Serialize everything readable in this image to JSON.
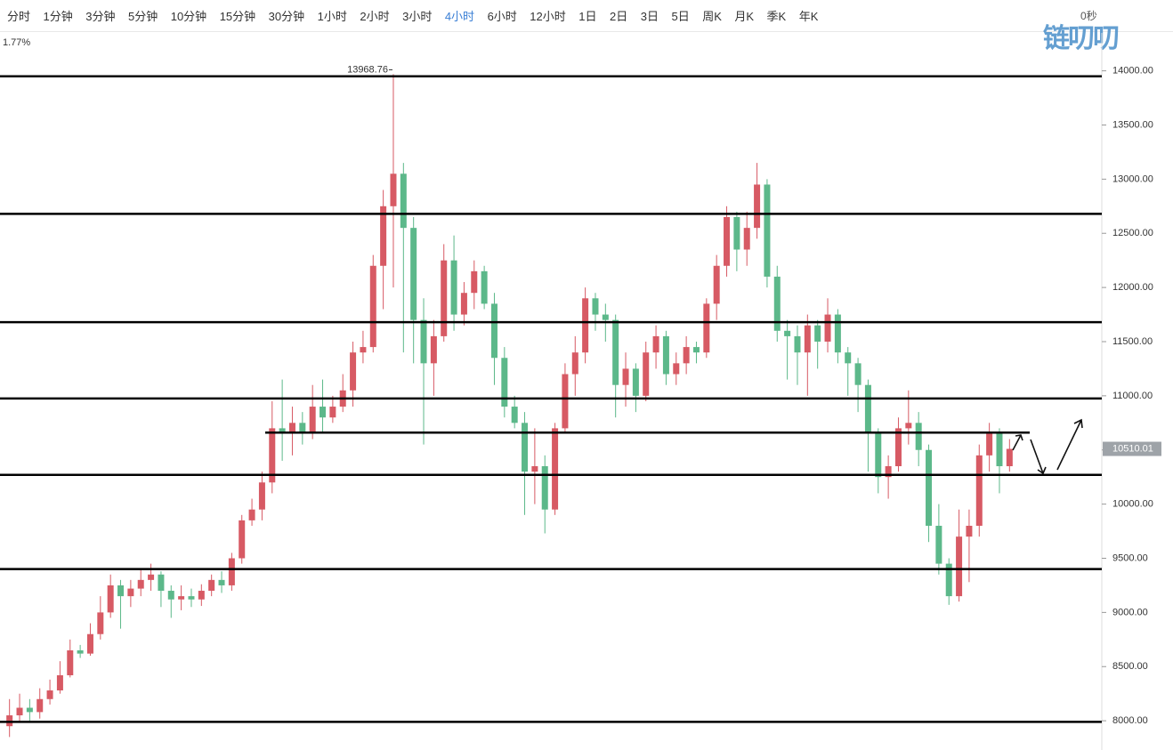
{
  "toolbar": {
    "items": [
      "分时",
      "1分钟",
      "3分钟",
      "5分钟",
      "10分钟",
      "15分钟",
      "30分钟",
      "1小时",
      "2小时",
      "3小时",
      "4小时",
      "6小时",
      "12小时",
      "1日",
      "2日",
      "3日",
      "5日",
      "周K",
      "月K",
      "季K",
      "年K"
    ],
    "selected_index": 10,
    "timer": "0秒"
  },
  "logo": "链叨叨",
  "chart_data": {
    "type": "candlestick",
    "change_label": "1.77%",
    "up_color": "#d75a64",
    "down_color": "#5cb88a",
    "ylim": [
      7730,
      14350
    ],
    "yticks": [
      {
        "value": 8000,
        "label": "8000.00"
      },
      {
        "value": 8500,
        "label": "8500.00"
      },
      {
        "value": 9000,
        "label": "9000.00"
      },
      {
        "value": 9500,
        "label": "9500.00"
      },
      {
        "value": 10000,
        "label": "10000.00"
      },
      {
        "value": 10500,
        "label": "10500.00"
      },
      {
        "value": 11000,
        "label": "11000.00"
      },
      {
        "value": 11500,
        "label": "11500.00"
      },
      {
        "value": 12000,
        "label": "12000.00"
      },
      {
        "value": 12500,
        "label": "12500.00"
      },
      {
        "value": 13000,
        "label": "13000.00"
      },
      {
        "value": 13500,
        "label": "13500.00"
      },
      {
        "value": 14000,
        "label": "14000.00"
      }
    ],
    "levels": [
      13950,
      12680,
      11680,
      10975,
      10660,
      10270,
      9400,
      7990
    ],
    "open": [
      7950,
      8050,
      8120,
      8080,
      8200,
      8280,
      8420,
      8650,
      8620,
      8800,
      9000,
      9250,
      9150,
      9220,
      9300,
      9350,
      9200,
      9120,
      9150,
      9120,
      9200,
      9300,
      9250,
      9500,
      9850,
      9950,
      10200,
      10700,
      10650,
      10750,
      10650,
      10900,
      10800,
      10900,
      11050,
      11400,
      11450,
      12200,
      12750,
      13050,
      12550,
      11700,
      11300,
      11550,
      12250,
      11750,
      11950,
      12150,
      11850,
      11350,
      10900,
      10750,
      10300,
      10350,
      9950,
      10700,
      11200,
      11400,
      11900,
      11750,
      11700,
      11100,
      11250,
      11000,
      11400,
      11550,
      11200,
      11300,
      11450,
      11400,
      11850,
      12200,
      12650,
      12350,
      12550,
      12950,
      12100,
      11600,
      11550,
      11400,
      11650,
      11500,
      11750,
      11400,
      11300,
      11100,
      10650,
      10250,
      10350,
      10700,
      10750,
      10500,
      9800,
      9450,
      9150,
      9700,
      9800,
      10450,
      10650,
      10350
    ],
    "high": [
      8200,
      8250,
      8200,
      8300,
      8380,
      8550,
      8750,
      8700,
      8900,
      9150,
      9350,
      9300,
      9300,
      9400,
      9450,
      9380,
      9250,
      9250,
      9220,
      9260,
      9350,
      9380,
      9550,
      9900,
      10050,
      10300,
      10950,
      11150,
      10900,
      10850,
      11100,
      11150,
      11000,
      11200,
      11500,
      11600,
      12300,
      12900,
      13968.76,
      13150,
      12650,
      11900,
      11700,
      12400,
      12480,
      12050,
      12250,
      12200,
      11950,
      11450,
      11000,
      10850,
      10700,
      10450,
      10750,
      11300,
      11550,
      12000,
      11950,
      11850,
      11750,
      11400,
      11300,
      11500,
      11650,
      11600,
      11400,
      11550,
      11500,
      11900,
      12300,
      12750,
      12700,
      12700,
      13150,
      13000,
      12200,
      11700,
      11650,
      11750,
      11700,
      11900,
      11800,
      11450,
      11350,
      11150,
      10700,
      10450,
      10800,
      11050,
      10850,
      10550,
      10000,
      9500,
      9950,
      9950,
      10550,
      10750,
      10700,
      10600
    ],
    "low": [
      7850,
      7980,
      8000,
      8020,
      8150,
      8250,
      8400,
      8580,
      8600,
      8750,
      8950,
      8850,
      9050,
      9150,
      9200,
      9050,
      8950,
      9020,
      9050,
      9060,
      9150,
      9180,
      9200,
      9450,
      9800,
      9850,
      10100,
      10400,
      10450,
      10550,
      10600,
      10650,
      10750,
      10850,
      10900,
      11300,
      11400,
      11800,
      12000,
      11400,
      11300,
      10550,
      11000,
      11500,
      11600,
      11650,
      11800,
      11800,
      11100,
      10800,
      10700,
      9900,
      10000,
      9730,
      9900,
      10650,
      11000,
      11300,
      11600,
      11500,
      10800,
      10900,
      10850,
      10950,
      11250,
      11100,
      11100,
      11200,
      11300,
      11350,
      11700,
      12100,
      12150,
      12200,
      12450,
      12000,
      11500,
      11150,
      11100,
      11000,
      11250,
      11400,
      11300,
      11000,
      10850,
      10300,
      10100,
      10050,
      10300,
      10550,
      10350,
      9650,
      9350,
      9070,
      9100,
      9280,
      9700,
      10300,
      10100,
      10300
    ],
    "close": [
      8050,
      8120,
      8080,
      8200,
      8280,
      8420,
      8650,
      8620,
      8800,
      9000,
      9250,
      9150,
      9220,
      9300,
      9350,
      9200,
      9120,
      9150,
      9120,
      9200,
      9300,
      9250,
      9500,
      9850,
      9950,
      10200,
      10700,
      10650,
      10750,
      10650,
      10900,
      10800,
      10900,
      11050,
      11400,
      11450,
      12200,
      12750,
      13050,
      12550,
      11700,
      11300,
      11550,
      12250,
      11750,
      11950,
      12150,
      11850,
      11350,
      10900,
      10750,
      10300,
      10350,
      9950,
      10700,
      11200,
      11400,
      11900,
      11750,
      11700,
      11100,
      11250,
      11000,
      11400,
      11550,
      11200,
      11300,
      11450,
      11400,
      11850,
      12200,
      12650,
      12350,
      12550,
      12950,
      12100,
      11600,
      11550,
      11400,
      11650,
      11500,
      11750,
      11400,
      11300,
      11100,
      10650,
      10250,
      10350,
      10700,
      10750,
      10500,
      9800,
      9450,
      9150,
      9700,
      9800,
      10450,
      10650,
      10350,
      10510.01
    ]
  }
}
